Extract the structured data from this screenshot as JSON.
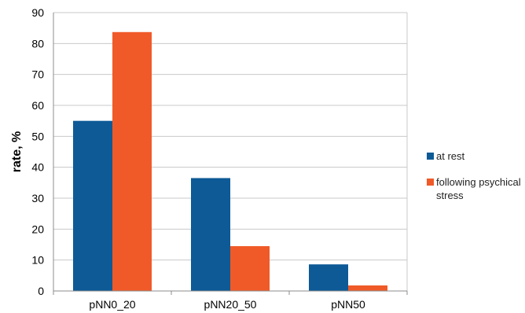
{
  "chart_data": {
    "type": "bar",
    "categories": [
      "pNN0_20",
      "pNN20_50",
      "pNN50"
    ],
    "series": [
      {
        "name": "at rest",
        "values": [
          55,
          36.5,
          8.6
        ],
        "color": "#0d5a96"
      },
      {
        "name": "following psychical stress",
        "values": [
          83.7,
          14.5,
          1.8
        ],
        "color": "#f05a28"
      }
    ],
    "ylabel": "rate, %",
    "ylim": [
      0,
      90
    ],
    "yticks": [
      0,
      10,
      20,
      30,
      40,
      50,
      60,
      70,
      80,
      90
    ],
    "grid": true,
    "legend_position": "right",
    "grid_color": "#c8c8c8"
  }
}
